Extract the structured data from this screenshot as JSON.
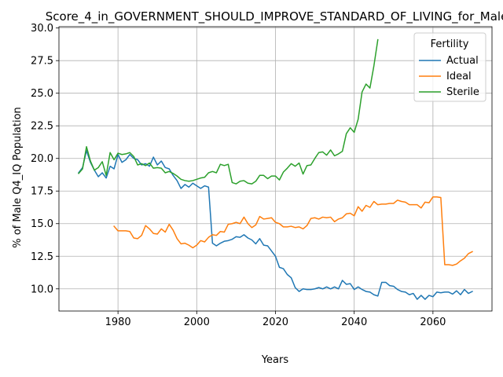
{
  "chart_data": {
    "type": "line",
    "title": "Score_4_in_GOVERNMENT_SHOULD_IMPROVE_STANDARD_OF_LIVING_for_Male",
    "xlabel": "Years",
    "ylabel": "% of Male Q4_IQ Population",
    "xlim": [
      1965,
      2075
    ],
    "ylim": [
      8.3,
      30.1
    ],
    "xticks": [
      1980,
      2000,
      2020,
      2040,
      2060
    ],
    "yticks": [
      10.0,
      12.5,
      15.0,
      17.5,
      20.0,
      22.5,
      25.0,
      27.5,
      30.0
    ],
    "xtick_labels": [
      "1980",
      "2000",
      "2020",
      "2040",
      "2060"
    ],
    "ytick_labels": [
      "10.0",
      "12.5",
      "15.0",
      "17.5",
      "20.0",
      "22.5",
      "25.0",
      "27.5",
      "30.0"
    ],
    "grid": true,
    "legend": {
      "title": "Fertility",
      "placement": "top-right"
    },
    "series": [
      {
        "name": "Actual",
        "color": "#1f77b4",
        "x": [
          1970,
          1971,
          1972,
          1973,
          1974,
          1975,
          1976,
          1977,
          1978,
          1979,
          1980,
          1981,
          1982,
          1983,
          1984,
          1985,
          1986,
          1987,
          1988,
          1989,
          1990,
          1991,
          1992,
          1993,
          1994,
          1995,
          1996,
          1997,
          1998,
          1999,
          2000,
          2001,
          2002,
          2003,
          2004,
          2005,
          2006,
          2007,
          2008,
          2009,
          2010,
          2011,
          2012,
          2013,
          2014,
          2015,
          2016,
          2017,
          2018,
          2019,
          2020,
          2021,
          2022,
          2023,
          2024,
          2025,
          2026,
          2027,
          2028,
          2029,
          2030,
          2031,
          2032,
          2033,
          2034,
          2035,
          2036,
          2037,
          2038,
          2039,
          2040,
          2041,
          2042,
          2043,
          2044,
          2045,
          2046,
          2047,
          2048,
          2049,
          2050,
          2051,
          2052,
          2053,
          2054,
          2055,
          2056,
          2057,
          2058,
          2059,
          2060,
          2061,
          2062,
          2063,
          2064,
          2065,
          2066,
          2067,
          2068,
          2069,
          2070
        ],
        "y": [
          18.9,
          19.3,
          20.6,
          19.7,
          19.1,
          18.6,
          18.9,
          18.5,
          19.4,
          19.2,
          20.3,
          19.7,
          19.9,
          20.3,
          20.0,
          19.9,
          19.5,
          19.6,
          19.4,
          20.1,
          19.5,
          19.8,
          19.3,
          19.2,
          18.7,
          18.3,
          17.7,
          18.0,
          17.8,
          18.1,
          17.9,
          17.7,
          17.9,
          17.8,
          13.5,
          13.3,
          13.5,
          13.65,
          13.7,
          13.8,
          14.0,
          13.95,
          14.15,
          13.9,
          13.75,
          13.45,
          13.85,
          13.35,
          13.3,
          12.9,
          12.5,
          11.65,
          11.55,
          11.1,
          10.85,
          10.1,
          9.8,
          10.0,
          9.95,
          9.95,
          10.0,
          10.1,
          10.0,
          10.15,
          10.0,
          10.15,
          10.0,
          10.65,
          10.35,
          10.4,
          9.95,
          10.15,
          9.95,
          9.8,
          9.75,
          9.55,
          9.45,
          10.5,
          10.5,
          10.25,
          10.2,
          9.95,
          9.8,
          9.75,
          9.55,
          9.65,
          9.2,
          9.5,
          9.2,
          9.5,
          9.4,
          9.75,
          9.7,
          9.75,
          9.75,
          9.6,
          9.85,
          9.55,
          9.95,
          9.65,
          9.8
        ]
      },
      {
        "name": "Ideal",
        "color": "#ff7f0e",
        "x": [
          1979,
          1980,
          1981,
          1982,
          1983,
          1984,
          1985,
          1986,
          1987,
          1988,
          1989,
          1990,
          1991,
          1992,
          1993,
          1994,
          1995,
          1996,
          1997,
          1998,
          1999,
          2000,
          2001,
          2002,
          2003,
          2004,
          2005,
          2006,
          2007,
          2008,
          2009,
          2010,
          2011,
          2012,
          2013,
          2014,
          2015,
          2016,
          2017,
          2018,
          2019,
          2020,
          2021,
          2022,
          2023,
          2024,
          2025,
          2026,
          2027,
          2028,
          2029,
          2030,
          2031,
          2032,
          2033,
          2034,
          2035,
          2036,
          2037,
          2038,
          2039,
          2040,
          2041,
          2042,
          2043,
          2044,
          2045,
          2046,
          2047,
          2048,
          2049,
          2050,
          2051,
          2052,
          2053,
          2054,
          2055,
          2056,
          2057,
          2058,
          2059,
          2060,
          2061,
          2062,
          2063,
          2064,
          2065,
          2066,
          2067,
          2068,
          2069,
          2070
        ],
        "y": [
          14.8,
          14.45,
          14.45,
          14.45,
          14.4,
          13.9,
          13.85,
          14.1,
          14.85,
          14.6,
          14.25,
          14.2,
          14.6,
          14.35,
          14.95,
          14.5,
          13.85,
          13.45,
          13.5,
          13.35,
          13.15,
          13.35,
          13.7,
          13.6,
          13.95,
          14.15,
          14.1,
          14.4,
          14.35,
          14.95,
          15.0,
          15.1,
          15.0,
          15.5,
          15.0,
          14.7,
          14.9,
          15.55,
          15.35,
          15.4,
          15.45,
          15.1,
          15.0,
          14.75,
          14.75,
          14.8,
          14.7,
          14.75,
          14.6,
          14.85,
          15.4,
          15.45,
          15.35,
          15.5,
          15.45,
          15.5,
          15.15,
          15.35,
          15.45,
          15.75,
          15.8,
          15.6,
          16.3,
          15.95,
          16.4,
          16.25,
          16.7,
          16.45,
          16.5,
          16.5,
          16.55,
          16.55,
          16.8,
          16.7,
          16.65,
          16.45,
          16.45,
          16.45,
          16.2,
          16.65,
          16.6,
          17.05,
          17.05,
          17.0,
          11.85,
          11.85,
          11.8,
          11.9,
          12.15,
          12.35,
          12.7,
          12.85
        ]
      },
      {
        "name": "Sterile",
        "color": "#2ca02c",
        "x": [
          1970,
          1971,
          1972,
          1973,
          1974,
          1975,
          1976,
          1977,
          1978,
          1979,
          1980,
          1981,
          1982,
          1983,
          1984,
          1985,
          1986,
          1987,
          1988,
          1989,
          1990,
          1991,
          1992,
          1993,
          1994,
          1995,
          1996,
          1997,
          1998,
          1999,
          2000,
          2001,
          2002,
          2003,
          2004,
          2005,
          2006,
          2007,
          2008,
          2009,
          2010,
          2011,
          2012,
          2013,
          2014,
          2015,
          2016,
          2017,
          2018,
          2019,
          2020,
          2021,
          2022,
          2023,
          2024,
          2025,
          2026,
          2027,
          2028,
          2029,
          2030,
          2031,
          2032,
          2033,
          2034,
          2035,
          2036,
          2037,
          2038,
          2039,
          2040,
          2041,
          2042,
          2043,
          2044,
          2045,
          2046
        ],
        "y": [
          18.85,
          19.2,
          20.9,
          19.8,
          19.1,
          19.3,
          19.75,
          18.7,
          20.45,
          19.9,
          20.4,
          20.3,
          20.35,
          20.45,
          20.15,
          19.5,
          19.6,
          19.45,
          19.65,
          19.25,
          19.3,
          19.25,
          18.9,
          19.0,
          18.85,
          18.65,
          18.4,
          18.3,
          18.25,
          18.3,
          18.4,
          18.5,
          18.55,
          18.9,
          19.0,
          18.9,
          19.55,
          19.45,
          19.55,
          18.15,
          18.05,
          18.25,
          18.3,
          18.1,
          18.05,
          18.25,
          18.7,
          18.7,
          18.45,
          18.65,
          18.65,
          18.35,
          18.95,
          19.25,
          19.6,
          19.4,
          19.65,
          18.8,
          19.45,
          19.5,
          20.0,
          20.45,
          20.5,
          20.25,
          20.65,
          20.2,
          20.35,
          20.55,
          21.9,
          22.35,
          22.0,
          23.0,
          25.1,
          25.7,
          25.4,
          27.1,
          29.1
        ]
      }
    ]
  }
}
